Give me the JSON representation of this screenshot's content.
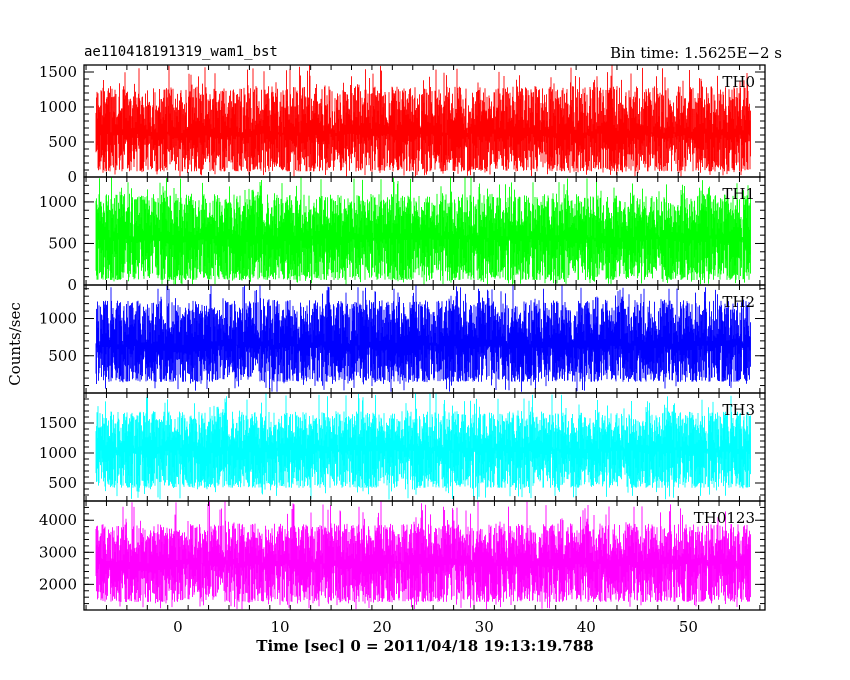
{
  "header": {
    "left": "ae110418191319_wam1_bst",
    "right": "Bin time: 1.5625E−2 s"
  },
  "chart_data": {
    "type": "line",
    "xlabel": "Time [sec] 0 = 2011/04/18 19:13:19.788",
    "ylabel": "Counts/sec",
    "xlim": [
      -9.2,
      57.5
    ],
    "x_ticks": [
      0,
      10,
      20,
      30,
      40,
      50
    ],
    "data_x_range": [
      -8,
      56
    ],
    "grid": false,
    "panels": [
      {
        "name": "TH0",
        "color": "#ff0000",
        "ylim": [
          0,
          1600
        ],
        "y_ticks": [
          0,
          500,
          1000,
          1500
        ],
        "low": 80,
        "center": 620,
        "high": 1300,
        "peak": 1600
      },
      {
        "name": "TH1",
        "color": "#00ff00",
        "ylim": [
          0,
          1300
        ],
        "y_ticks": [
          0,
          500,
          1000
        ],
        "low": 60,
        "center": 560,
        "high": 1100,
        "peak": 1300
      },
      {
        "name": "TH2",
        "color": "#0000ff",
        "ylim": [
          0,
          1450
        ],
        "y_ticks": [
          500,
          1000
        ],
        "low": 150,
        "center": 640,
        "high": 1250,
        "peak": 1450
      },
      {
        "name": "TH3",
        "color": "#00ffff",
        "ylim": [
          200,
          2000
        ],
        "y_ticks": [
          500,
          1000,
          1500
        ],
        "low": 420,
        "center": 1050,
        "high": 1700,
        "peak": 2000
      },
      {
        "name": "TH0123",
        "color": "#ff00ff",
        "ylim": [
          1200,
          4600
        ],
        "y_ticks": [
          2000,
          3000,
          4000
        ],
        "low": 1450,
        "center": 2650,
        "high": 3900,
        "peak": 4600
      }
    ]
  }
}
